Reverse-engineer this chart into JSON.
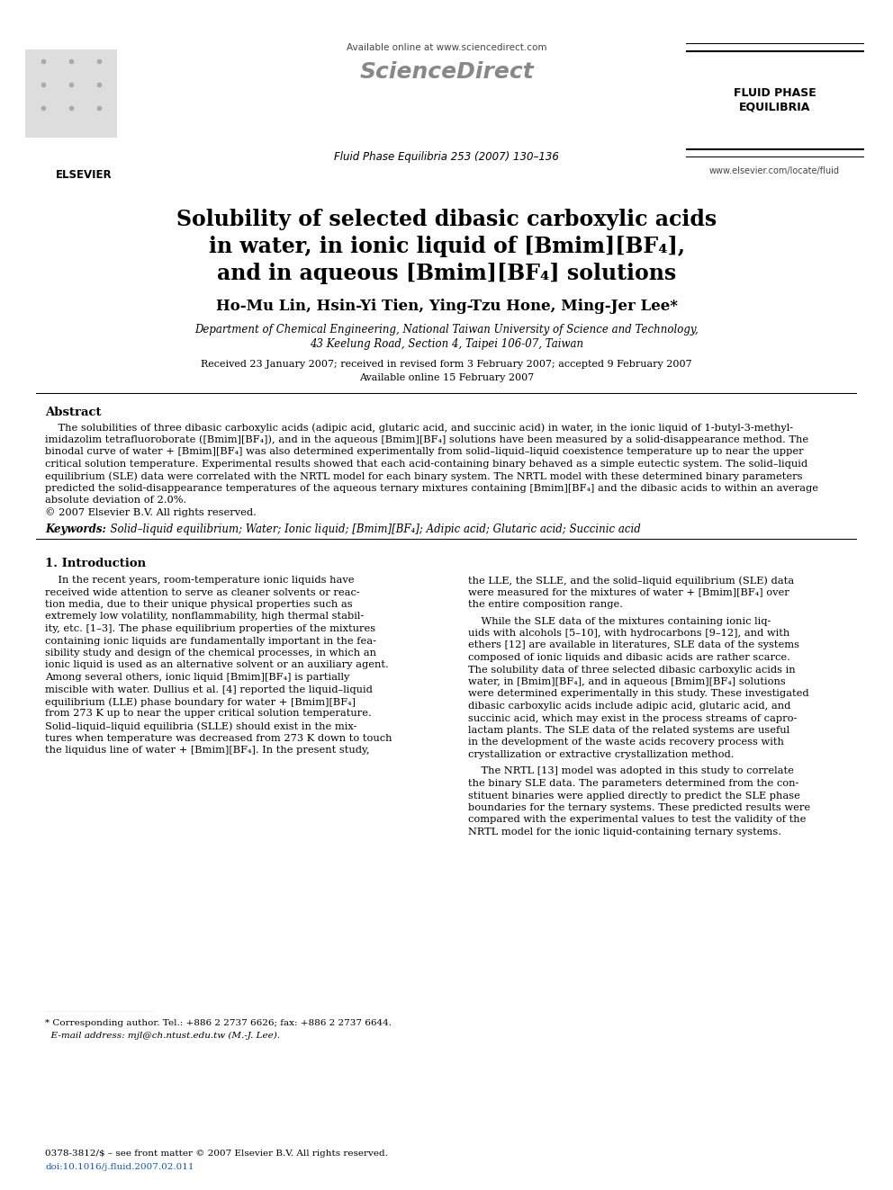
{
  "background_color": "#ffffff",
  "page_width": 9.92,
  "page_height": 13.23,
  "dpi": 100,
  "header_available": "Available online at www.sciencedirect.com",
  "header_sciencedirect": "ScienceDirect",
  "header_journal": "Fluid Phase Equilibria 253 (2007) 130–136",
  "header_elsevier": "ELSEVIER",
  "header_fluid_phase": "FLUID PHASE\nEQUILIBRIA",
  "header_website": "www.elsevier.com/locate/fluid",
  "title_line1": "Solubility of selected dibasic carboxylic acids",
  "title_line2": "in water, in ionic liquid of [Bmim][BF₄],",
  "title_line3": "and in aqueous [Bmim][BF₄] solutions",
  "authors": "Ho-Mu Lin, Hsin-Yi Tien, Ying-Tzu Hone, Ming-Jer Lee*",
  "affil1": "Department of Chemical Engineering, National Taiwan University of Science and Technology,",
  "affil2": "43 Keelung Road, Section 4, Taipei 106-07, Taiwan",
  "dates1": "Received 23 January 2007; received in revised form 3 February 2007; accepted 9 February 2007",
  "dates2": "Available online 15 February 2007",
  "abstract_head": "Abstract",
  "abstract_body": "    The solubilities of three dibasic carboxylic acids (adipic acid, glutaric acid, and succinic acid) in water, in the ionic liquid of 1-butyl-3-methyl-imidazolim tetrafluoroborate ([Bmim][BF₄]), and in the aqueous [Bmim][BF₄] solutions have been measured by a solid-disappearance method. The binodal curve of water + [Bmim][BF₄] was also determined experimentally from solid–liquid–liquid coexistence temperature up to near the upper critical solution temperature. Experimental results showed that each acid-containing binary behaved as a simple eutectic system. The solid–liquid equilibrium (SLE) data were correlated with the NRTL model for each binary system. The NRTL model with these determined binary parameters predicted the solid-disappearance temperatures of the aqueous ternary mixtures containing [Bmim][BF₄] and the dibasic acids to within an average absolute deviation of 2.0%.\n© 2007 Elsevier B.V. All rights reserved.",
  "kw_label": "Keywords:",
  "kw_text": "  Solid–liquid equilibrium; Water; Ionic liquid; [Bmim][BF₄]; Adipic acid; Glutaric acid; Succinic acid",
  "sec1_title": "1. Introduction",
  "col1_text": "    In the recent years, room-temperature ionic liquids have received wide attention to serve as cleaner solvents or reac-tion media, due to their unique physical properties such as extremely low volatility, nonflammability, high thermal stabil-ity, etc. [1–3]. The phase equilibrium properties of the mixtures containing ionic liquids are fundamentally important in the fea-sibility study and design of the chemical processes, in which an ionic liquid is used as an alternative solvent or an auxiliary agent. Among several others, ionic liquid [Bmim][BF₄] is partially miscible with water. Dullius et al. [4] reported the liquid–liquid equilibrium (LLE) phase boundary for water + [Bmim][BF₄] from 273 K up to near the upper critical solution temperature. Solid–liquid–liquid equilibria (SLLE) should exist in the mix-tures when temperature was decreased from 273 K down to touch the liquidus line of water + [Bmim][BF₄]. In the present study,",
  "col2_text1": "the LLE, the SLLE, and the solid–liquid equilibrium (SLE) data were measured for the mixtures of water + [Bmim][BF₄] over the entire composition range.",
  "col2_text2": "    While the SLE data of the mixtures containing ionic liq-uids with alcohols [5–10], with hydrocarbons [9–12], and with ethers [12] are available in literatures, SLE data of the systems composed of ionic liquids and dibasic acids are rather scarce. The solubility data of three selected dibasic carboxylic acids in water, in [Bmim][BF₄], and in aqueous [Bmim][BF₄] solutions were determined experimentally in this study. These investigated dibasic carboxylic acids include adipic acid, glutaric acid, and succinic acid, which may exist in the process streams of capro-lactam plants. The SLE data of the related systems are useful in the development of the waste acids recovery process with crystallization or extractive crystallization method.",
  "col2_text3": "    The NRTL [13] model was adopted in this study to correlate the binary SLE data. The parameters determined from the con-stituent binaries were applied directly to predict the SLE phase boundaries for the ternary systems. These predicted results were compared with the experimental values to test the validity of the NRTL model for the ionic liquid-containing ternary systems.",
  "footnote1": "* Corresponding author. Tel.: +886 2 2737 6626; fax: +886 2 2737 6644.",
  "footnote2": "  E-mail address: mjl@ch.ntust.edu.tw (M.-J. Lee).",
  "issn": "0378-3812/$ – see front matter © 2007 Elsevier B.V. All rights reserved.",
  "doi": "doi:10.1016/j.fluid.2007.02.011"
}
